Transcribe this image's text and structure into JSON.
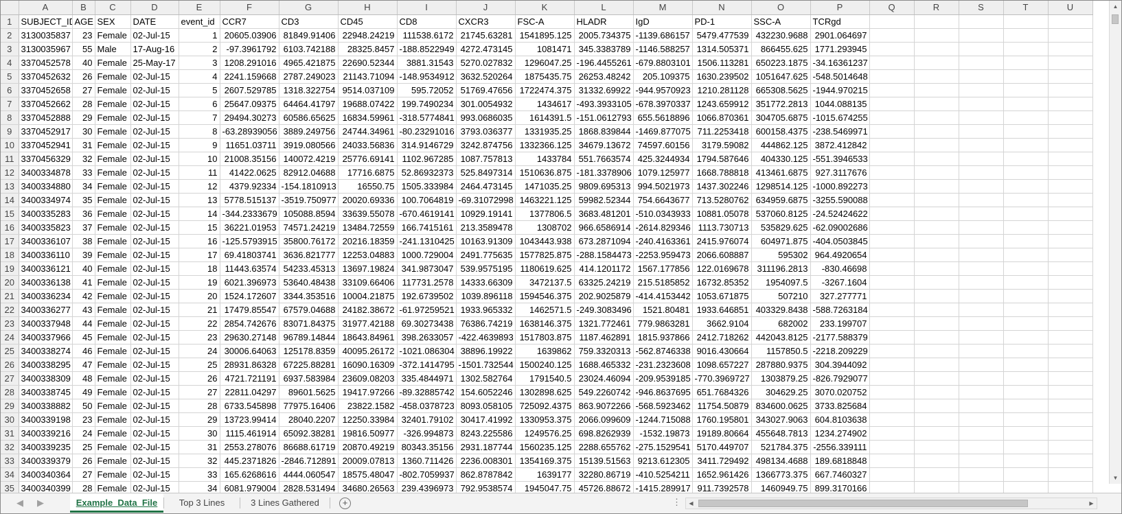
{
  "sheet": {
    "column_letters": [
      "A",
      "B",
      "C",
      "D",
      "E",
      "F",
      "G",
      "H",
      "I",
      "J",
      "K",
      "L",
      "M",
      "N",
      "O",
      "P",
      "Q",
      "R",
      "S",
      "T",
      "U"
    ],
    "row_numbers": [
      1,
      2,
      3,
      4,
      5,
      6,
      7,
      8,
      9,
      10,
      11,
      12,
      13,
      14,
      15,
      16,
      17,
      18,
      19,
      20,
      21,
      22,
      23,
      24,
      25,
      26,
      27,
      28,
      29,
      30,
      31,
      32,
      33,
      34,
      35
    ],
    "headers": [
      "SUBJECT_ID",
      "AGE",
      "SEX",
      "DATE",
      "event_id",
      "CCR7",
      "CD3",
      "CD45",
      "CD8",
      "CXCR3",
      "FSC-A",
      "HLADR",
      "IgD",
      "PD-1",
      "SSC-A",
      "TCRgd"
    ],
    "rows": [
      [
        "3130035837",
        "23",
        "Female",
        "02-Jul-15",
        "1",
        "20605.03906",
        "81849.91406",
        "22948.24219",
        "111538.6172",
        "21745.63281",
        "1541895.125",
        "2005.734375",
        "-1139.686157",
        "5479.477539",
        "432230.9688",
        "2901.064697"
      ],
      [
        "3130035967",
        "55",
        "Male",
        "17-Aug-16",
        "2",
        "-97.3961792",
        "6103.742188",
        "28325.8457",
        "-188.8522949",
        "4272.473145",
        "1081471",
        "345.3383789",
        "-1146.588257",
        "1314.505371",
        "866455.625",
        "1771.293945"
      ],
      [
        "3370452578",
        "40",
        "Female",
        "25-May-17",
        "3",
        "1208.291016",
        "4965.421875",
        "22690.52344",
        "3881.31543",
        "5270.027832",
        "1296047.25",
        "-196.4455261",
        "-679.8803101",
        "1506.113281",
        "650223.1875",
        "-34.16361237"
      ],
      [
        "3370452632",
        "26",
        "Female",
        "02-Jul-15",
        "4",
        "2241.159668",
        "2787.249023",
        "21143.71094",
        "-148.9534912",
        "3632.520264",
        "1875435.75",
        "26253.48242",
        "205.109375",
        "1630.239502",
        "1051647.625",
        "-548.5014648"
      ],
      [
        "3370452658",
        "27",
        "Female",
        "02-Jul-15",
        "5",
        "2607.529785",
        "1318.322754",
        "9514.037109",
        "595.72052",
        "51769.47656",
        "1722474.375",
        "31332.69922",
        "-944.9570923",
        "1210.281128",
        "665308.5625",
        "-1944.970215"
      ],
      [
        "3370452662",
        "28",
        "Female",
        "02-Jul-15",
        "6",
        "25647.09375",
        "64464.41797",
        "19688.07422",
        "199.7490234",
        "301.0054932",
        "1434617",
        "-493.3933105",
        "-678.3970337",
        "1243.659912",
        "351772.2813",
        "1044.088135"
      ],
      [
        "3370452888",
        "29",
        "Female",
        "02-Jul-15",
        "7",
        "29494.30273",
        "60586.65625",
        "16834.59961",
        "-318.5774841",
        "993.0686035",
        "1614391.5",
        "-151.0612793",
        "655.5618896",
        "1066.870361",
        "304705.6875",
        "-1015.674255"
      ],
      [
        "3370452917",
        "30",
        "Female",
        "02-Jul-15",
        "8",
        "-63.28939056",
        "3889.249756",
        "24744.34961",
        "-80.23291016",
        "3793.036377",
        "1331935.25",
        "1868.839844",
        "-1469.877075",
        "711.2253418",
        "600158.4375",
        "-238.5469971"
      ],
      [
        "3370452941",
        "31",
        "Female",
        "02-Jul-15",
        "9",
        "11651.03711",
        "3919.080566",
        "24033.56836",
        "314.9146729",
        "3242.874756",
        "1332366.125",
        "34679.13672",
        "74597.60156",
        "3179.59082",
        "444862.125",
        "3872.412842"
      ],
      [
        "3370456329",
        "32",
        "Female",
        "02-Jul-15",
        "10",
        "21008.35156",
        "140072.4219",
        "25776.69141",
        "1102.967285",
        "1087.757813",
        "1433784",
        "551.7663574",
        "425.3244934",
        "1794.587646",
        "404330.125",
        "-551.3946533"
      ],
      [
        "3400334878",
        "33",
        "Female",
        "02-Jul-15",
        "11",
        "41422.0625",
        "82912.04688",
        "17716.6875",
        "52.86932373",
        "525.8497314",
        "1510636.875",
        "-181.3378906",
        "1079.125977",
        "1668.788818",
        "413461.6875",
        "927.3117676"
      ],
      [
        "3400334880",
        "34",
        "Female",
        "02-Jul-15",
        "12",
        "4379.92334",
        "-154.1810913",
        "16550.75",
        "1505.333984",
        "2464.473145",
        "1471035.25",
        "9809.695313",
        "994.5021973",
        "1437.302246",
        "1298514.125",
        "-1000.892273"
      ],
      [
        "3400334974",
        "35",
        "Female",
        "02-Jul-15",
        "13",
        "5778.515137",
        "-3519.750977",
        "20020.69336",
        "100.7064819",
        "-69.31072998",
        "1463221.125",
        "59982.52344",
        "754.6643677",
        "713.5280762",
        "634959.6875",
        "-3255.590088"
      ],
      [
        "3400335283",
        "36",
        "Female",
        "02-Jul-15",
        "14",
        "-344.2333679",
        "105088.8594",
        "33639.55078",
        "-670.4619141",
        "10929.19141",
        "1377806.5",
        "3683.481201",
        "-510.0343933",
        "10881.05078",
        "537060.8125",
        "-24.52424622"
      ],
      [
        "3400335823",
        "37",
        "Female",
        "02-Jul-15",
        "15",
        "36221.01953",
        "74571.24219",
        "13484.72559",
        "166.7415161",
        "213.3589478",
        "1308702",
        "966.6586914",
        "-2614.829346",
        "1113.730713",
        "535829.625",
        "-62.09002686"
      ],
      [
        "3400336107",
        "38",
        "Female",
        "02-Jul-15",
        "16",
        "-125.5793915",
        "35800.76172",
        "20216.18359",
        "-241.1310425",
        "10163.91309",
        "1043443.938",
        "673.2871094",
        "-240.4163361",
        "2415.976074",
        "604971.875",
        "-404.0503845"
      ],
      [
        "3400336110",
        "39",
        "Female",
        "02-Jul-15",
        "17",
        "69.41803741",
        "3636.821777",
        "12253.04883",
        "1000.729004",
        "2491.775635",
        "1577825.875",
        "-288.1584473",
        "-2253.959473",
        "2066.608887",
        "595302",
        "964.4920654"
      ],
      [
        "3400336121",
        "40",
        "Female",
        "02-Jul-15",
        "18",
        "11443.63574",
        "54233.45313",
        "13697.19824",
        "341.9873047",
        "539.9575195",
        "1180619.625",
        "414.1201172",
        "1567.177856",
        "122.0169678",
        "311196.2813",
        "-830.46698"
      ],
      [
        "3400336138",
        "41",
        "Female",
        "02-Jul-15",
        "19",
        "6021.396973",
        "53640.48438",
        "33109.66406",
        "117731.2578",
        "14333.66309",
        "3472137.5",
        "63325.24219",
        "215.5185852",
        "16732.85352",
        "1954097.5",
        "-3267.1604"
      ],
      [
        "3400336234",
        "42",
        "Female",
        "02-Jul-15",
        "20",
        "1524.172607",
        "3344.353516",
        "10004.21875",
        "192.6739502",
        "1039.896118",
        "1594546.375",
        "202.9025879",
        "-414.4153442",
        "1053.671875",
        "507210",
        "327.277771"
      ],
      [
        "3400336277",
        "43",
        "Female",
        "02-Jul-15",
        "21",
        "17479.85547",
        "67579.04688",
        "24182.38672",
        "-61.97259521",
        "1933.965332",
        "1462571.5",
        "-249.3083496",
        "1521.80481",
        "1933.646851",
        "403329.8438",
        "-588.7263184"
      ],
      [
        "3400337948",
        "44",
        "Female",
        "02-Jul-15",
        "22",
        "2854.742676",
        "83071.84375",
        "31977.42188",
        "69.30273438",
        "76386.74219",
        "1638146.375",
        "1321.772461",
        "779.9863281",
        "3662.9104",
        "682002",
        "233.199707"
      ],
      [
        "3400337966",
        "45",
        "Female",
        "02-Jul-15",
        "23",
        "29630.27148",
        "96789.14844",
        "18643.84961",
        "398.2633057",
        "-422.4639893",
        "1517803.875",
        "1187.462891",
        "1815.937866",
        "2412.718262",
        "442043.8125",
        "-2177.588379"
      ],
      [
        "3400338274",
        "46",
        "Female",
        "02-Jul-15",
        "24",
        "30006.64063",
        "125178.8359",
        "40095.26172",
        "-1021.086304",
        "38896.19922",
        "1639862",
        "759.3320313",
        "-562.8746338",
        "9016.430664",
        "1157850.5",
        "-2218.209229"
      ],
      [
        "3400338295",
        "47",
        "Female",
        "02-Jul-15",
        "25",
        "28931.86328",
        "67225.88281",
        "16090.16309",
        "-372.1414795",
        "-1501.732544",
        "1500240.125",
        "1688.465332",
        "-231.2323608",
        "1098.657227",
        "287880.9375",
        "304.3944092"
      ],
      [
        "3400338309",
        "48",
        "Female",
        "02-Jul-15",
        "26",
        "4721.721191",
        "6937.583984",
        "23609.08203",
        "335.4844971",
        "1302.582764",
        "1791540.5",
        "23024.46094",
        "-209.9539185",
        "-770.3969727",
        "1303879.25",
        "-826.7929077"
      ],
      [
        "3400338745",
        "49",
        "Female",
        "02-Jul-15",
        "27",
        "22811.04297",
        "89601.5625",
        "19417.97266",
        "-89.32885742",
        "154.6052246",
        "1302898.625",
        "549.2260742",
        "-946.8637695",
        "651.7684326",
        "304629.25",
        "3070.020752"
      ],
      [
        "3400338882",
        "50",
        "Female",
        "02-Jul-15",
        "28",
        "6733.545898",
        "77975.16406",
        "23822.1582",
        "-458.0378723",
        "8093.058105",
        "725092.4375",
        "863.9072266",
        "-568.5923462",
        "11754.50879",
        "834600.0625",
        "3733.825684"
      ],
      [
        "3400339198",
        "23",
        "Female",
        "02-Jul-15",
        "29",
        "13723.99414",
        "28040.2207",
        "12250.33984",
        "32401.79102",
        "30417.41992",
        "1330953.375",
        "2066.099609",
        "-1244.715088",
        "1760.195801",
        "343027.9063",
        "604.8103638"
      ],
      [
        "3400339216",
        "24",
        "Female",
        "02-Jul-15",
        "30",
        "1115.461914",
        "65092.38281",
        "19816.50977",
        "-326.994873",
        "8243.225586",
        "1249576.25",
        "698.8262939",
        "-1532.19873",
        "19189.80664",
        "455648.7813",
        "1234.274902"
      ],
      [
        "3400339235",
        "25",
        "Female",
        "02-Jul-15",
        "31",
        "2553.278076",
        "86688.61719",
        "20870.49219",
        "80343.35156",
        "2931.187744",
        "1560235.125",
        "2288.655762",
        "-275.1529541",
        "5170.449707",
        "521784.375",
        "-2556.339111"
      ],
      [
        "3400339379",
        "26",
        "Female",
        "02-Jul-15",
        "32",
        "445.2371826",
        "-2846.712891",
        "20009.07813",
        "1360.711426",
        "2236.008301",
        "1354169.375",
        "15139.51563",
        "9213.612305",
        "3411.729492",
        "498134.4688",
        "189.6818848"
      ],
      [
        "3400340364",
        "27",
        "Female",
        "02-Jul-15",
        "33",
        "165.6268616",
        "4444.060547",
        "18575.48047",
        "-802.7059937",
        "862.8787842",
        "1639177",
        "32280.86719",
        "-410.5254211",
        "1652.961426",
        "1366773.375",
        "667.7460327"
      ],
      [
        "3400340399",
        "28",
        "Female",
        "02-Jul-15",
        "34",
        "6081.979004",
        "2828.531494",
        "34680.26563",
        "239.4396973",
        "792.9538574",
        "1945047.75",
        "45726.88672",
        "-1415.289917",
        "911.7392578",
        "1460949.75",
        "899.3170166"
      ]
    ]
  },
  "tabs": [
    {
      "label": "Example_Data_File",
      "active": true
    },
    {
      "label": "Top 3 Lines",
      "active": false
    },
    {
      "label": "3 Lines Gathered",
      "active": false
    }
  ],
  "icons": {
    "prev_sheet": "◀",
    "next_sheet": "▶",
    "add_sheet": "+",
    "more_options": "⋮",
    "scroll_up": "▲",
    "scroll_down": "▼",
    "scroll_left": "◀",
    "scroll_right": "▶"
  },
  "colors": {
    "active_tab": "#217346",
    "header_bg": "#efefef",
    "grid_line": "#d4d4d4"
  }
}
